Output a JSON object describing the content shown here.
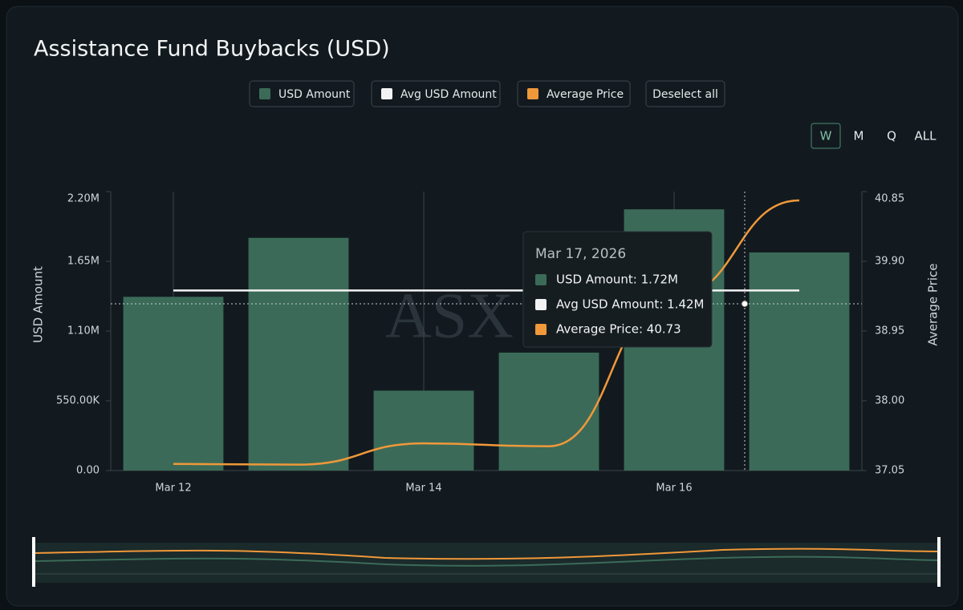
{
  "chart_data": {
    "type": "bar",
    "title": "Assistance Fund Buybacks (USD)",
    "categories": [
      "Mar 12",
      null,
      "Mar 14",
      null,
      "Mar 16",
      null
    ],
    "series": [
      {
        "name": "USD Amount",
        "type": "bar",
        "color": "#3b6b58",
        "values": [
          1370000,
          1835000,
          630000,
          930000,
          2060000,
          1720000
        ]
      },
      {
        "name": "Avg USD Amount",
        "type": "line",
        "color": "#f2f2f2",
        "values": [
          1420000,
          1420000,
          1420000,
          1420000,
          1420000,
          1420000
        ]
      },
      {
        "name": "Average Price",
        "type": "line",
        "axis": "y2",
        "color": "#f0983a",
        "values": [
          37.14,
          37.13,
          37.42,
          37.38,
          39.42,
          40.73
        ]
      }
    ],
    "ylabel": "USD Amount",
    "y2label": "Average Price",
    "ylim": [
      0,
      2200000
    ],
    "yticks": [
      {
        "value": 0,
        "label": "0.00"
      },
      {
        "value": 550000,
        "label": "550.00K"
      },
      {
        "value": 1100000,
        "label": "1.10M"
      },
      {
        "value": 1650000,
        "label": "1.65M"
      },
      {
        "value": 2200000,
        "label": "2.20M"
      }
    ],
    "y2lim": [
      37.05,
      40.85
    ],
    "y2ticks": [
      37.05,
      {
        "value": 38,
        "label": "38.00"
      },
      38.95,
      {
        "value": 39.9,
        "label": "39.90"
      },
      40.85
    ],
    "grid": "x",
    "deselect_label": "Deselect all",
    "ranges": [
      "W",
      "M",
      "Q",
      "ALL"
    ],
    "active_range": "W",
    "watermark": "ASX",
    "tooltip": {
      "title": "Mar 17, 2026",
      "items": [
        "USD Amount: 1.72M",
        "Avg USD Amount: 1.42M",
        "Average Price: 40.73"
      ]
    }
  }
}
